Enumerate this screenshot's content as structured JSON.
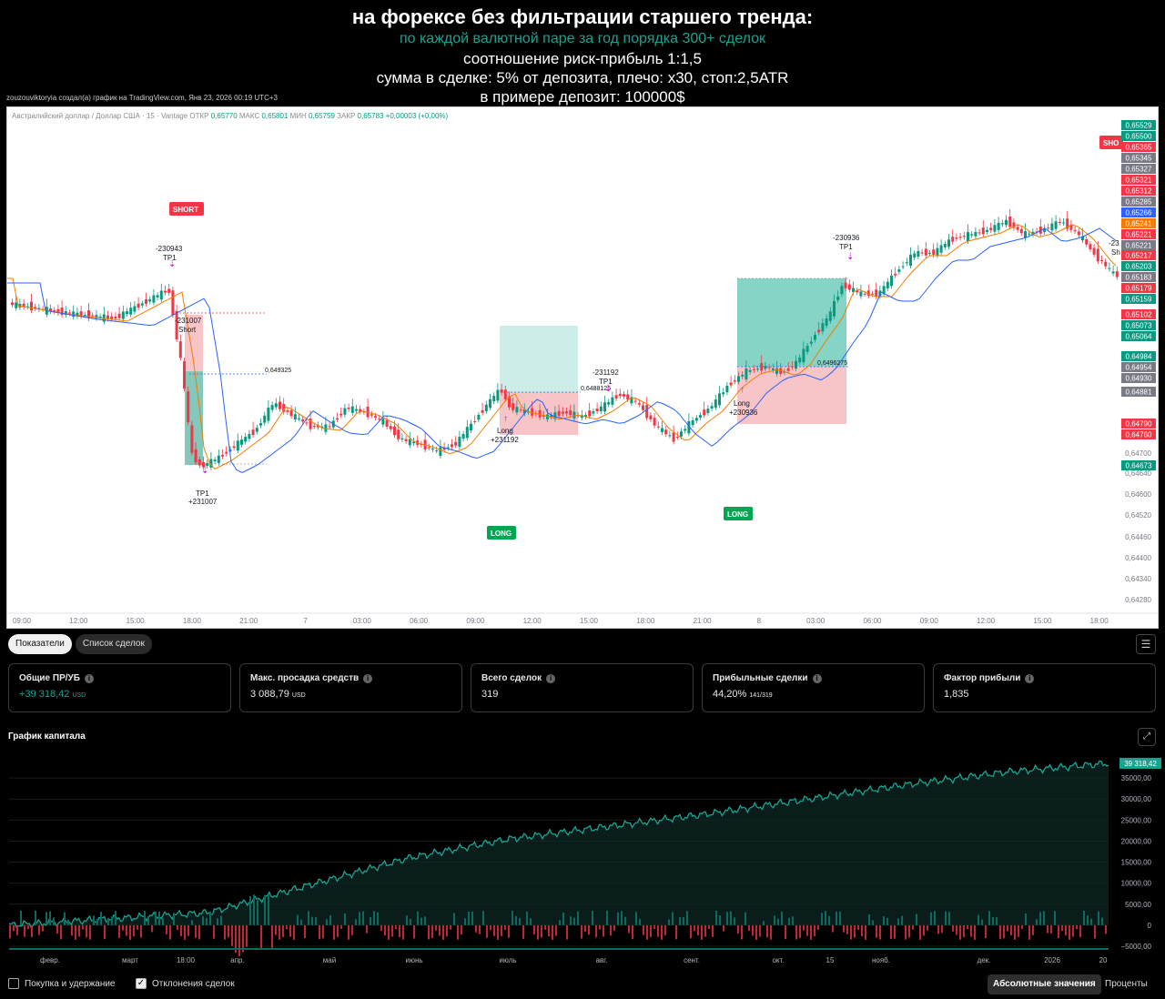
{
  "header": {
    "title": "на форексе без фильтрации старшего тренда:",
    "subtitle": "по каждой валютной паре за год порядка 300+ сделок",
    "line3": "соотношение риск-прибыль 1:1,5",
    "line4": "сумма в сделке: 5% от депозита, плечо: х30, стоп:2,5ATR",
    "line5": "в примере депозит: 100000$",
    "credit": "zouzouviktoryia создал(а) график на TradingView.com, Янв 23, 2026 00:19 UTC+3"
  },
  "chart": {
    "symbol_line": "Австралийский доллар / Доллар США · 15 · Vantage",
    "ohlc": [
      {
        "label": "ОТКР",
        "value": "0,65770"
      },
      {
        "label": "МАКС",
        "value": "0,65801"
      },
      {
        "label": "МИН",
        "value": "0,65759"
      },
      {
        "label": "ЗАКР",
        "value": "0,65783"
      }
    ],
    "change": "+0,00003 (+0,00%)",
    "x_ticks": [
      "09:00",
      "12:00",
      "15:00",
      "18:00",
      "21:00",
      "7",
      "03:00",
      "06:00",
      "09:00",
      "12:00",
      "15:00",
      "18:00",
      "21:00",
      "8",
      "03:00",
      "06:00",
      "09:00",
      "12:00",
      "15:00",
      "18:00"
    ],
    "y_ticks": [
      "0,64700",
      "0,64640",
      "0,64600",
      "0,64520",
      "0,64460",
      "0,64400",
      "0,64340",
      "0,64280"
    ],
    "price_labels": [
      {
        "text": "0,65529",
        "color": "#089981"
      },
      {
        "text": "0,65500",
        "color": "#089981"
      },
      {
        "text": "0,65365",
        "color": "#f23645"
      },
      {
        "text": "0,65345",
        "color": "#787b86"
      },
      {
        "text": "0,65327",
        "color": "#787b86"
      },
      {
        "text": "0,65321",
        "color": "#f23645"
      },
      {
        "text": "0,65312",
        "color": "#f23645"
      },
      {
        "text": "0,65285",
        "color": "#787b86"
      },
      {
        "text": "0,65266",
        "color": "#2962ff"
      },
      {
        "text": "0,65241",
        "color": "#f57c00"
      },
      {
        "text": "0,65221",
        "color": "#f23645"
      },
      {
        "text": "0,65221",
        "color": "#787b86"
      },
      {
        "text": "0,65217",
        "color": "#f23645"
      },
      {
        "text": "0,65203",
        "color": "#089981"
      },
      {
        "text": "0,65183",
        "color": "#787b86"
      },
      {
        "text": "0,65179",
        "color": "#f23645"
      },
      {
        "text": "0,65159",
        "color": "#089981"
      },
      {
        "text": "0,65102",
        "color": "#f23645"
      },
      {
        "text": "0,65073",
        "color": "#089981"
      },
      {
        "text": "0,65064",
        "color": "#089981"
      },
      {
        "text": "0,64984",
        "color": "#089981"
      },
      {
        "text": "0,64954",
        "color": "#787b86"
      },
      {
        "text": "0,64930",
        "color": "#787b86"
      },
      {
        "text": "0,64881",
        "color": "#787b86"
      },
      {
        "text": "0,64790",
        "color": "#f23645"
      },
      {
        "text": "0,64760",
        "color": "#f23645"
      },
      {
        "text": "0,64673",
        "color": "#089981"
      }
    ],
    "signals": {
      "short1": "SHORT",
      "short2": "SHO",
      "long1": "LONG",
      "long2": "LONG"
    },
    "annotations": {
      "a1": "-230943",
      "a1b": "TP1",
      "a2": "-231007",
      "a2b": "Short",
      "a3": "TP1",
      "a3b": "+231007",
      "a4": "Long",
      "a4b": "+231192",
      "a5": "-231192",
      "a5b": "TP1",
      "a6": "Long",
      "a6b": "+230936",
      "a7": "-230936",
      "a7b": "TP1",
      "a8": "-23",
      "a8b": "Sh",
      "lvl1": "0,649325",
      "lvl2": "0,6488125",
      "lvl3": "0,6496275"
    }
  },
  "tabs": [
    "Показатели",
    "Список сделок"
  ],
  "metrics": [
    {
      "label": "Общие ПР/УБ",
      "value": "+39 318,42",
      "unit": "USD",
      "positive": true
    },
    {
      "label": "Макс. просадка средств",
      "value": "3 088,79",
      "unit": "USD",
      "positive": false
    },
    {
      "label": "Всего сделок",
      "value": "319",
      "unit": "",
      "positive": false
    },
    {
      "label": "Прибыльные сделки",
      "value": "44,20%",
      "unit": "141/319",
      "positive": false
    },
    {
      "label": "Фактор прибыли",
      "value": "1,835",
      "unit": "",
      "positive": false
    }
  ],
  "equity": {
    "title": "График капитала",
    "last_value": "39 318,42",
    "y_ticks": [
      "35000,00",
      "30000,00",
      "25000,00",
      "20000,00",
      "15000,00",
      "10000,00",
      "5000,00",
      "0",
      "−5000,00"
    ],
    "x_ticks": [
      "февр.",
      "март",
      "18:00",
      "апр.",
      "май",
      "июнь",
      "июль",
      "авг.",
      "сент.",
      "окт.",
      "15",
      "нояб.",
      "дек.",
      "2026",
      "20"
    ],
    "chart_data": {
      "type": "area",
      "ylim": [
        -5000,
        40000
      ],
      "x": [
        "февр.",
        "март",
        "апр.",
        "май",
        "июнь",
        "июль",
        "авг.",
        "сент.",
        "окт.",
        "нояб.",
        "дек.",
        "2026"
      ],
      "values": [
        0,
        1500,
        3000,
        9500,
        16000,
        20500,
        23500,
        26500,
        30000,
        33500,
        36500,
        38500
      ]
    }
  },
  "footer": {
    "buy_hold": "Покупка и удержание",
    "deviations": "Отклонения сделок",
    "absolute": "Абсолютные значения",
    "percent": "Проценты"
  },
  "colors": {
    "up": "#089981",
    "down": "#f23645",
    "accent": "#1aa391"
  }
}
